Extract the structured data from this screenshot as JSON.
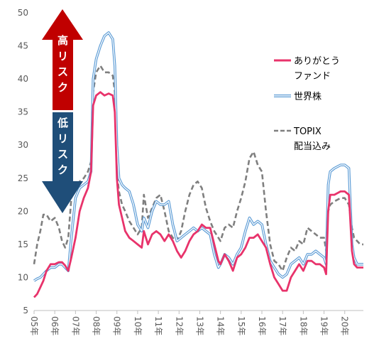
{
  "chart_data": {
    "type": "line",
    "title": "",
    "xlabel": "",
    "ylabel": "",
    "ylim": [
      5,
      50
    ],
    "yticks": [
      5,
      10,
      15,
      20,
      25,
      30,
      35,
      40,
      45,
      50
    ],
    "xlim": [
      2005.0,
      2020.9
    ],
    "x_tick_labels": [
      "05年",
      "06年",
      "07年",
      "08年",
      "09年",
      "10年",
      "11年",
      "12年",
      "13年",
      "14年",
      "15年",
      "16年",
      "17年",
      "18年",
      "19年",
      "20年"
    ],
    "x_tick_values": [
      2005,
      2006,
      2007,
      2008,
      2009,
      2010,
      2011,
      2012,
      2013,
      2014,
      2015,
      2016,
      2017,
      2018,
      2019,
      2020
    ],
    "grid": false,
    "legend_position": "right",
    "annotations": {
      "high_risk": "高リスク",
      "low_risk": "低リスク"
    },
    "colors": {
      "arigato": "#e8336b",
      "sekaikabu": "#5b9bd5",
      "topix": "#7f7f7f",
      "arrow_up": "#c00000",
      "arrow_down": "#1f4e79"
    },
    "series": [
      {
        "name": "ありがとうファンド",
        "legend_lines": [
          "ありがとう",
          "ファンド"
        ],
        "style": "solid",
        "x": [
          2005.0,
          2005.15,
          2005.3,
          2005.45,
          2005.6,
          2005.8,
          2006.0,
          2006.2,
          2006.35,
          2006.5,
          2006.65,
          2006.8,
          2007.0,
          2007.2,
          2007.4,
          2007.6,
          2007.75,
          2007.85,
          2008.0,
          2008.2,
          2008.4,
          2008.6,
          2008.8,
          2008.9,
          2009.0,
          2009.1,
          2009.25,
          2009.4,
          2009.6,
          2009.8,
          2010.0,
          2010.2,
          2010.3,
          2010.5,
          2010.7,
          2010.9,
          2011.1,
          2011.3,
          2011.5,
          2011.7,
          2011.9,
          2012.1,
          2012.3,
          2012.5,
          2012.7,
          2012.9,
          2013.1,
          2013.3,
          2013.5,
          2013.7,
          2013.9,
          2014.0,
          2014.2,
          2014.4,
          2014.6,
          2014.8,
          2015.0,
          2015.2,
          2015.4,
          2015.6,
          2015.8,
          2016.0,
          2016.2,
          2016.4,
          2016.6,
          2016.8,
          2017.0,
          2017.2,
          2017.4,
          2017.6,
          2017.8,
          2018.0,
          2018.2,
          2018.4,
          2018.6,
          2018.8,
          2019.0,
          2019.1,
          2019.2,
          2019.3,
          2019.5,
          2019.8,
          2020.0,
          2020.2,
          2020.35,
          2020.45,
          2020.6,
          2020.75,
          2020.9
        ],
        "y": [
          7.0,
          7.5,
          8.5,
          9.5,
          11.0,
          12.0,
          12.0,
          12.3,
          12.3,
          11.8,
          11.0,
          13.0,
          16.0,
          20.0,
          22.0,
          23.5,
          26.0,
          36.0,
          37.5,
          38.0,
          37.5,
          37.8,
          37.5,
          35.0,
          25.0,
          21.0,
          19.0,
          17.0,
          16.0,
          15.5,
          15.0,
          14.5,
          17.0,
          15.0,
          16.5,
          17.0,
          16.5,
          15.5,
          16.5,
          15.5,
          14.0,
          13.0,
          14.0,
          15.5,
          16.5,
          17.0,
          18.0,
          17.5,
          17.5,
          15.0,
          12.5,
          12.0,
          13.5,
          12.5,
          11.0,
          13.0,
          13.5,
          14.5,
          16.0,
          16.0,
          16.5,
          15.5,
          14.5,
          12.0,
          10.0,
          9.0,
          8.0,
          8.0,
          10.0,
          11.0,
          12.0,
          11.0,
          12.5,
          12.5,
          12.0,
          12.0,
          11.5,
          10.5,
          20.0,
          22.5,
          22.5,
          23.0,
          23.0,
          22.5,
          14.0,
          12.0,
          11.5,
          11.5,
          11.5
        ]
      },
      {
        "name": "世界株",
        "legend_lines": [
          "世界株"
        ],
        "style": "double",
        "x": [
          2005.0,
          2005.15,
          2005.3,
          2005.45,
          2005.6,
          2005.8,
          2006.0,
          2006.2,
          2006.35,
          2006.5,
          2006.65,
          2006.8,
          2007.0,
          2007.2,
          2007.4,
          2007.6,
          2007.75,
          2007.85,
          2008.0,
          2008.2,
          2008.4,
          2008.6,
          2008.8,
          2008.9,
          2009.0,
          2009.1,
          2009.25,
          2009.4,
          2009.6,
          2009.8,
          2010.0,
          2010.2,
          2010.3,
          2010.5,
          2010.7,
          2010.9,
          2011.1,
          2011.3,
          2011.5,
          2011.7,
          2011.9,
          2012.1,
          2012.3,
          2012.5,
          2012.7,
          2012.9,
          2013.1,
          2013.3,
          2013.5,
          2013.7,
          2013.9,
          2014.0,
          2014.2,
          2014.4,
          2014.6,
          2014.8,
          2015.0,
          2015.2,
          2015.4,
          2015.6,
          2015.8,
          2016.0,
          2016.2,
          2016.4,
          2016.6,
          2016.8,
          2017.0,
          2017.2,
          2017.4,
          2017.6,
          2017.8,
          2018.0,
          2018.2,
          2018.4,
          2018.6,
          2018.8,
          2019.0,
          2019.1,
          2019.2,
          2019.3,
          2019.5,
          2019.8,
          2020.0,
          2020.2,
          2020.35,
          2020.45,
          2020.6,
          2020.75,
          2020.9
        ],
        "y": [
          9.5,
          9.8,
          10.0,
          10.5,
          11.0,
          11.5,
          11.5,
          12.0,
          12.0,
          11.5,
          11.0,
          16.0,
          22.0,
          23.5,
          24.0,
          24.5,
          26.0,
          40.0,
          43.0,
          45.0,
          46.5,
          47.0,
          46.0,
          42.0,
          30.0,
          25.0,
          24.0,
          23.5,
          23.0,
          21.0,
          18.0,
          17.0,
          19.0,
          17.5,
          20.0,
          21.5,
          21.0,
          21.0,
          21.5,
          18.0,
          15.5,
          16.0,
          16.5,
          17.0,
          17.5,
          17.0,
          17.5,
          17.0,
          16.5,
          13.5,
          11.5,
          12.0,
          13.5,
          13.0,
          12.0,
          13.5,
          14.5,
          17.0,
          19.0,
          18.0,
          18.5,
          18.0,
          15.0,
          12.5,
          11.5,
          10.5,
          10.0,
          10.5,
          12.0,
          12.5,
          13.0,
          12.0,
          13.5,
          13.5,
          14.0,
          13.5,
          13.0,
          12.0,
          24.0,
          26.0,
          26.5,
          27.0,
          27.0,
          26.5,
          15.0,
          13.0,
          12.0,
          12.0,
          12.0
        ]
      },
      {
        "name": "TOPIX配当込み",
        "legend_lines": [
          "TOPIX",
          "配当込み"
        ],
        "style": "dashed",
        "x": [
          2005.0,
          2005.15,
          2005.3,
          2005.45,
          2005.6,
          2005.8,
          2006.0,
          2006.2,
          2006.35,
          2006.5,
          2006.65,
          2006.8,
          2007.0,
          2007.2,
          2007.4,
          2007.6,
          2007.75,
          2007.85,
          2008.0,
          2008.2,
          2008.4,
          2008.6,
          2008.8,
          2008.9,
          2009.0,
          2009.1,
          2009.25,
          2009.4,
          2009.6,
          2009.8,
          2010.0,
          2010.2,
          2010.3,
          2010.5,
          2010.7,
          2010.9,
          2011.1,
          2011.3,
          2011.5,
          2011.7,
          2011.9,
          2012.1,
          2012.3,
          2012.5,
          2012.7,
          2012.9,
          2013.1,
          2013.3,
          2013.5,
          2013.7,
          2013.9,
          2014.0,
          2014.2,
          2014.4,
          2014.6,
          2014.8,
          2015.0,
          2015.2,
          2015.4,
          2015.6,
          2015.8,
          2016.0,
          2016.2,
          2016.4,
          2016.6,
          2016.8,
          2017.0,
          2017.2,
          2017.4,
          2017.6,
          2017.8,
          2018.0,
          2018.2,
          2018.4,
          2018.6,
          2018.8,
          2019.0,
          2019.1,
          2019.2,
          2019.3,
          2019.5,
          2019.8,
          2020.0,
          2020.2,
          2020.35,
          2020.45,
          2020.6,
          2020.75,
          2020.9
        ],
        "y": [
          12.0,
          15.0,
          17.0,
          19.5,
          19.5,
          18.5,
          19.0,
          17.5,
          15.5,
          14.5,
          16.0,
          22.0,
          24.0,
          24.5,
          25.0,
          26.0,
          27.5,
          38.0,
          41.0,
          42.0,
          41.0,
          41.0,
          40.5,
          38.0,
          26.0,
          23.0,
          21.0,
          20.0,
          18.5,
          17.5,
          16.5,
          17.5,
          22.5,
          19.0,
          20.5,
          22.0,
          22.5,
          20.0,
          17.0,
          16.0,
          15.5,
          17.0,
          20.0,
          22.5,
          24.0,
          24.5,
          23.5,
          20.5,
          18.5,
          17.0,
          16.0,
          15.5,
          17.5,
          18.0,
          17.5,
          20.0,
          22.0,
          24.5,
          28.0,
          29.0,
          27.0,
          26.0,
          20.0,
          15.0,
          12.5,
          12.0,
          11.0,
          13.0,
          14.5,
          14.0,
          15.5,
          15.0,
          17.5,
          17.0,
          16.5,
          16.0,
          16.0,
          14.0,
          20.0,
          21.0,
          21.5,
          22.0,
          22.0,
          21.0,
          17.5,
          16.0,
          15.5,
          15.0,
          15.0
        ]
      }
    ]
  }
}
